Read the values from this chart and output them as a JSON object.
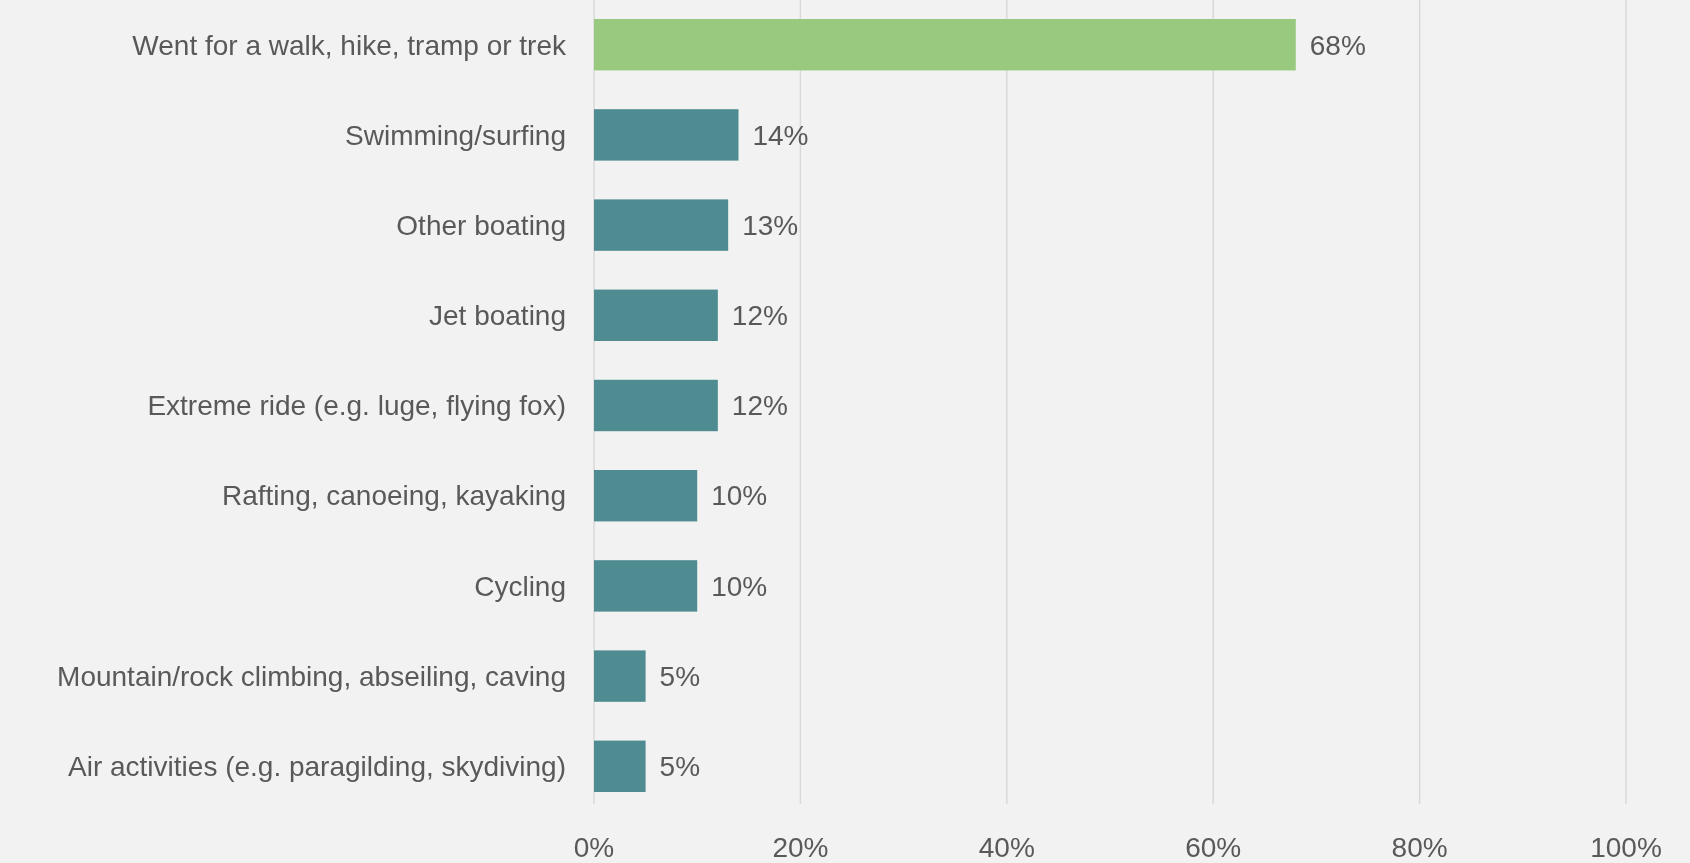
{
  "chart_data": {
    "type": "bar",
    "orientation": "horizontal",
    "categories": [
      "Went for a walk, hike, tramp or trek",
      "Swimming/surfing",
      "Other boating",
      "Jet boating",
      "Extreme ride (e.g. luge, flying fox)",
      "Rafting, canoeing, kayaking",
      "Cycling",
      "Mountain/rock climbing, abseiling, caving",
      "Air activities (e.g. paragilding, skydiving)"
    ],
    "values": [
      68,
      14,
      13,
      12,
      12,
      10,
      10,
      5,
      5
    ],
    "colors": [
      "#98c97e",
      "#4e8c92",
      "#4e8c92",
      "#4e8c92",
      "#4e8c92",
      "#4e8c92",
      "#4e8c92",
      "#4e8c92",
      "#4e8c92"
    ],
    "value_labels": [
      "68%",
      "14%",
      "13%",
      "12%",
      "12%",
      "10%",
      "10%",
      "5%",
      "5%"
    ],
    "xlim": [
      0,
      100
    ],
    "xticks": [
      {
        "value": 0,
        "label": "0%"
      },
      {
        "value": 20,
        "label": "20%"
      },
      {
        "value": 40,
        "label": "40%"
      },
      {
        "value": 60,
        "label": "60%"
      },
      {
        "value": 80,
        "label": "80%"
      },
      {
        "value": 100,
        "label": "100%"
      }
    ],
    "grid": "x"
  }
}
